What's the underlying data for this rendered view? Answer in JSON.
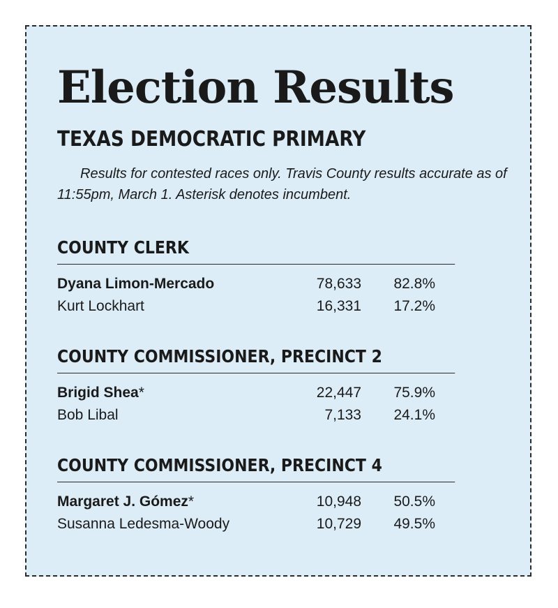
{
  "title": "Election Results",
  "subtitle": "TEXAS DEMOCRATIC PRIMARY",
  "note": "Results for contested races only. Travis County results accurate as of 11:55pm, March 1. Asterisk denotes incumbent.",
  "races": [
    {
      "title": "COUNTY CLERK",
      "candidates": [
        {
          "name": "Dyana Limon-Mercado",
          "votes": "78,633",
          "pct": "82.8%"
        },
        {
          "name": "Kurt Lockhart",
          "votes": "16,331",
          "pct": "17.2%"
        }
      ]
    },
    {
      "title": "COUNTY COMMISSIONER, PRECINCT 2",
      "candidates": [
        {
          "name": "Brigid Shea",
          "votes": "22,447",
          "pct": "75.9%"
        },
        {
          "name": "Bob Libal",
          "votes": "7,133",
          "pct": "24.1%"
        }
      ]
    },
    {
      "title": "COUNTY COMMISSIONER, PRECINCT 4",
      "candidates": [
        {
          "name": "Margaret J. Gómez",
          "votes": "10,948",
          "pct": "50.5%"
        },
        {
          "name": "Susanna Ledesma-Woody",
          "votes": "10,729",
          "pct": "49.5%"
        }
      ]
    }
  ],
  "incumbent_marker": "*"
}
